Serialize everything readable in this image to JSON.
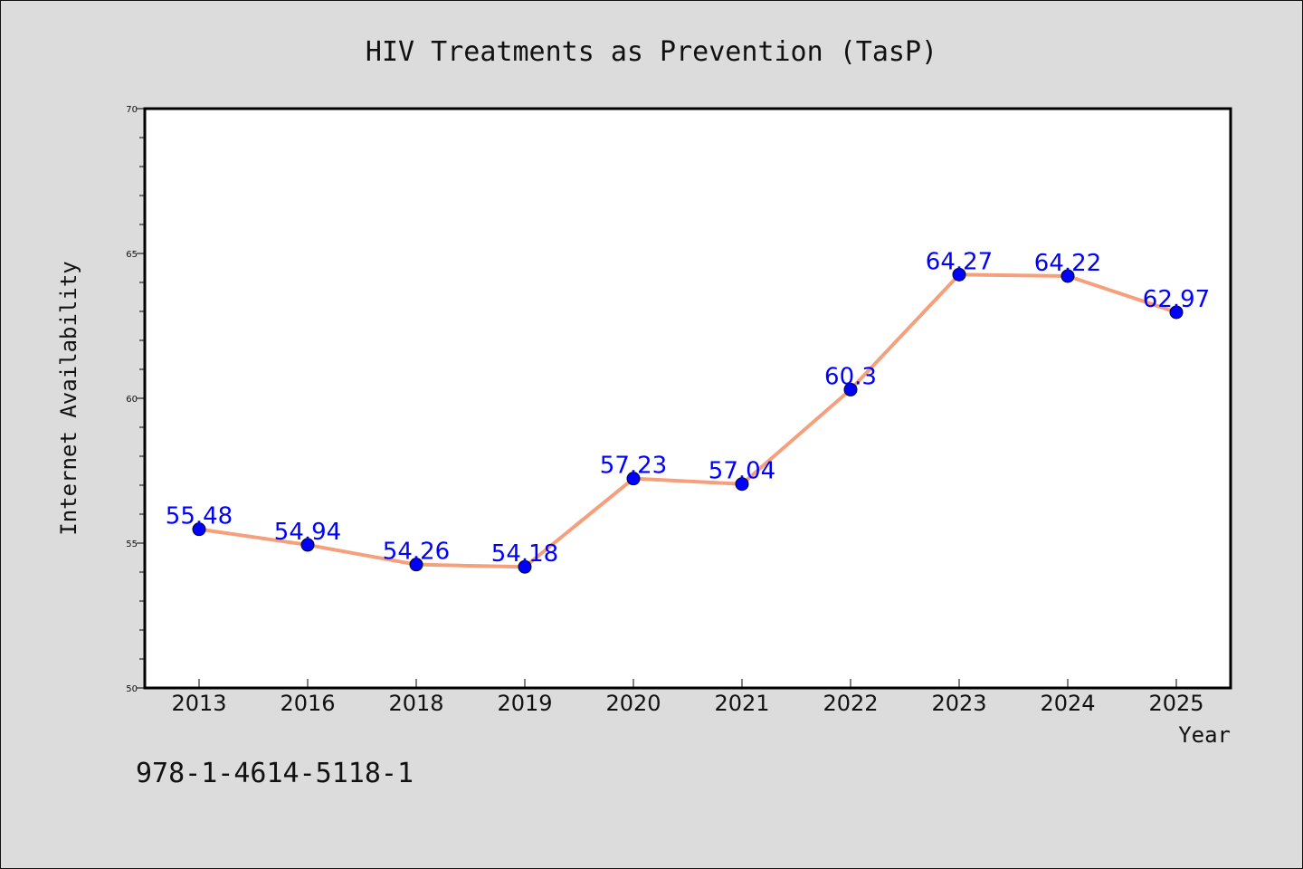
{
  "chart_data": {
    "type": "line",
    "title": "HIV Treatments as Prevention (TasP)",
    "xlabel": "Year",
    "ylabel": "Internet Availability",
    "categories": [
      "2013",
      "2016",
      "2018",
      "2019",
      "2020",
      "2021",
      "2022",
      "2023",
      "2024",
      "2025"
    ],
    "series": [
      {
        "values": [
          55.48,
          54.94,
          54.26,
          54.18,
          57.23,
          57.04,
          60.3,
          64.27,
          64.22,
          62.97
        ],
        "data_labels": [
          "55.48",
          "54.94",
          "54.26",
          "54.18",
          "57.23",
          "57.04",
          "60.3",
          "64.27",
          "64.22",
          "62.97"
        ],
        "line_color": "#f4a07c",
        "marker_color": "#0000ff",
        "label_color": "#0000ff"
      }
    ],
    "ylim": [
      50,
      70
    ],
    "yticks": [
      "50",
      "55",
      "60",
      "65",
      "70"
    ],
    "grid": false,
    "legend": "none"
  },
  "footnote": "978-1-4614-5118-1"
}
